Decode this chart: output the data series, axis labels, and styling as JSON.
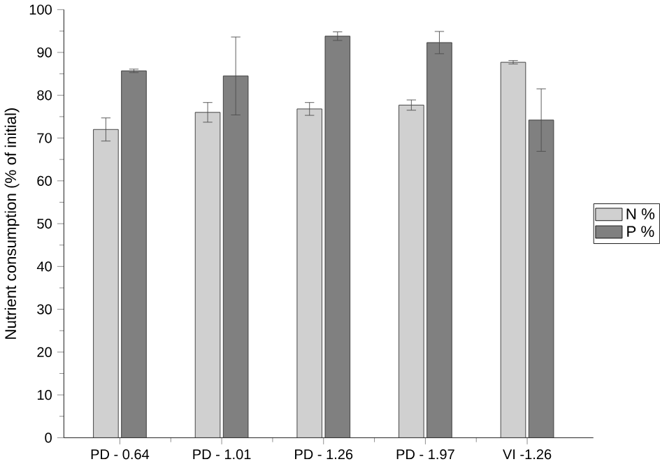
{
  "chart_data": {
    "type": "bar",
    "ylabel": "Nutrient consumption (% of initial)",
    "categories": [
      "PD - 0.64",
      "PD - 1.01",
      "PD - 1.26",
      "PD - 1.97",
      "VI -1.26"
    ],
    "series": [
      {
        "name": "N %",
        "color": "#d0d0d0",
        "values": [
          72,
          76,
          76.8,
          77.7,
          87.7
        ],
        "errors": [
          2.7,
          2.3,
          1.5,
          1.2,
          0.4
        ]
      },
      {
        "name": "P %",
        "color": "#808080",
        "values": [
          85.7,
          84.5,
          93.8,
          92.3,
          74.2
        ],
        "errors": [
          0.4,
          9.1,
          1.0,
          2.6,
          7.3
        ]
      }
    ],
    "ylim": [
      0,
      100
    ],
    "yticks": [
      0,
      10,
      20,
      30,
      40,
      50,
      60,
      70,
      80,
      90,
      100
    ],
    "legend": "right"
  }
}
